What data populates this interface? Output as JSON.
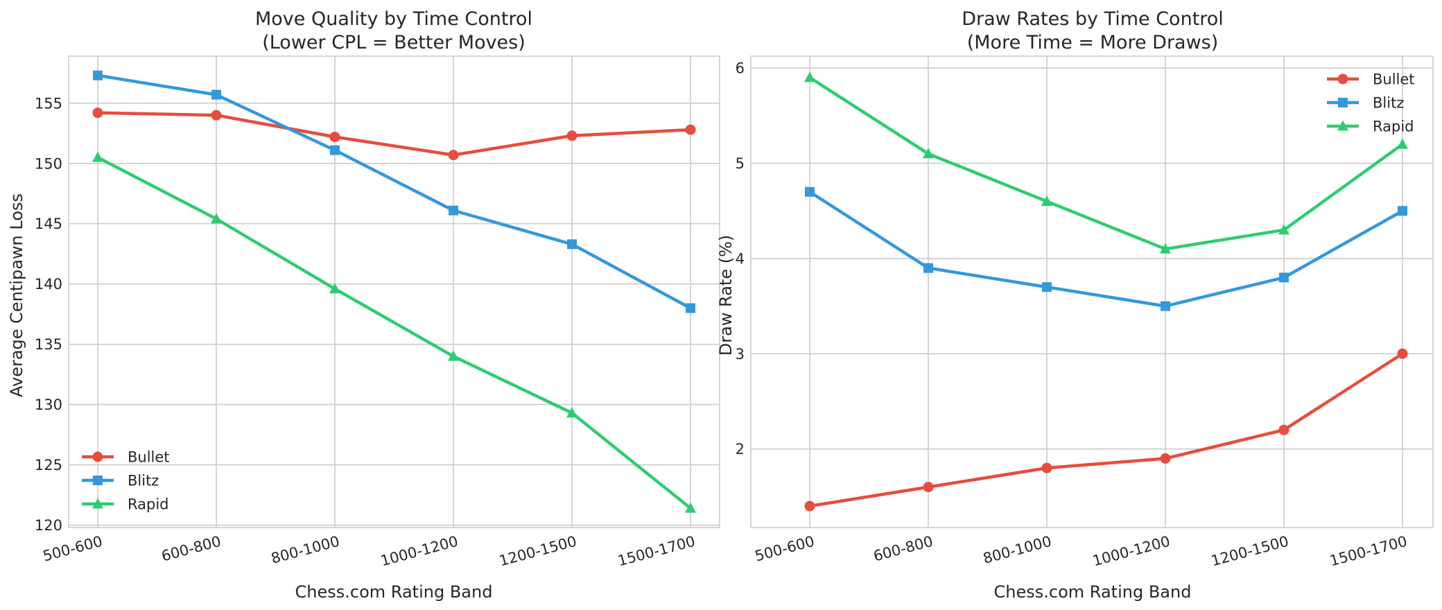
{
  "chart_data": [
    {
      "type": "line",
      "title_line1": "Move Quality by Time Control",
      "title_line2": "(Lower CPL = Better Moves)",
      "xlabel": "Chess.com Rating Band",
      "ylabel": "Average Centipawn Loss",
      "categories": [
        "500-600",
        "600-800",
        "800-1000",
        "1000-1200",
        "1200-1500",
        "1500-1700"
      ],
      "ylim": [
        119.8,
        158.9
      ],
      "yticks": [
        120,
        125,
        130,
        135,
        140,
        145,
        150,
        155
      ],
      "grid": true,
      "legend": "lower-left",
      "series": [
        {
          "name": "Bullet",
          "color": "#e74c3c",
          "marker": "circle",
          "values": [
            154.2,
            154.0,
            152.2,
            150.7,
            152.3,
            152.8
          ]
        },
        {
          "name": "Blitz",
          "color": "#3498db",
          "marker": "square",
          "values": [
            157.3,
            155.7,
            151.1,
            146.1,
            143.3,
            138.0
          ]
        },
        {
          "name": "Rapid",
          "color": "#2ecc71",
          "marker": "triangle",
          "values": [
            150.5,
            145.4,
            139.6,
            134.0,
            129.3,
            121.4
          ]
        }
      ]
    },
    {
      "type": "line",
      "title_line1": "Draw Rates by Time Control",
      "title_line2": "(More Time = More Draws)",
      "xlabel": "Chess.com Rating Band",
      "ylabel": "Draw Rate (%)",
      "categories": [
        "500-600",
        "600-800",
        "800-1000",
        "1000-1200",
        "1200-1500",
        "1500-1700"
      ],
      "ylim": [
        1.175,
        6.125
      ],
      "yticks": [
        2,
        3,
        4,
        5,
        6
      ],
      "grid": true,
      "legend": "upper-right",
      "series": [
        {
          "name": "Bullet",
          "color": "#e74c3c",
          "marker": "circle",
          "values": [
            1.4,
            1.6,
            1.8,
            1.9,
            2.2,
            3.0
          ]
        },
        {
          "name": "Blitz",
          "color": "#3498db",
          "marker": "square",
          "values": [
            4.7,
            3.9,
            3.7,
            3.5,
            3.8,
            4.5
          ]
        },
        {
          "name": "Rapid",
          "color": "#2ecc71",
          "marker": "triangle",
          "values": [
            5.9,
            5.1,
            4.6,
            4.1,
            4.3,
            5.2
          ]
        }
      ]
    }
  ]
}
